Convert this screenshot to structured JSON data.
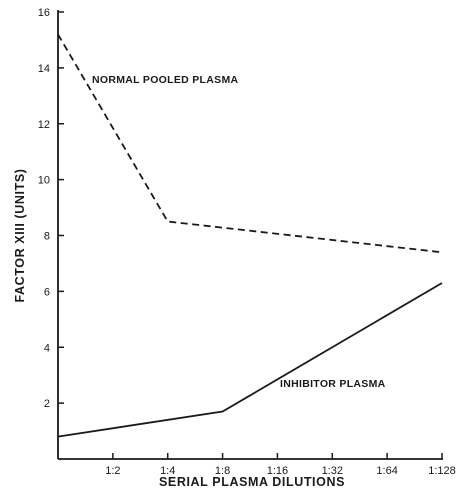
{
  "chart_data": {
    "type": "line",
    "title": "",
    "xlabel": "SERIAL PLASMA DILUTIONS",
    "ylabel": "FACTOR XIII (UNITS)",
    "categories": [
      "",
      "1:2",
      "1:4",
      "1:8",
      "1:16",
      "1:32",
      "1:64",
      "1:128"
    ],
    "ylim": [
      0,
      16
    ],
    "yticks": [
      2,
      4,
      6,
      8,
      10,
      12,
      14,
      16
    ],
    "grid": false,
    "series": [
      {
        "name": "NORMAL POOLED PLASMA",
        "style": "dashed",
        "color": "#1a1a1a",
        "points": [
          {
            "x": "",
            "y": 15.2
          },
          {
            "x": "1:4",
            "y": 8.5
          },
          {
            "x": "1:128",
            "y": 7.4
          }
        ]
      },
      {
        "name": "INHIBITOR PLASMA",
        "style": "solid",
        "color": "#1a1a1a",
        "points": [
          {
            "x": "",
            "y": 0.8
          },
          {
            "x": "1:8",
            "y": 1.7
          },
          {
            "x": "1:128",
            "y": 6.3
          }
        ]
      }
    ]
  }
}
